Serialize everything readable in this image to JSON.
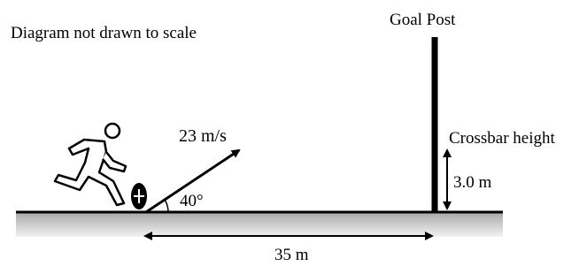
{
  "note": "Diagram not drawn to scale",
  "goal_post": {
    "label": "Goal Post"
  },
  "crossbar": {
    "label": "Crossbar height",
    "height_label": "3.0 m"
  },
  "kick": {
    "speed_label": "23 m/s",
    "angle_label": "40°"
  },
  "distance": {
    "label": "35 m"
  }
}
